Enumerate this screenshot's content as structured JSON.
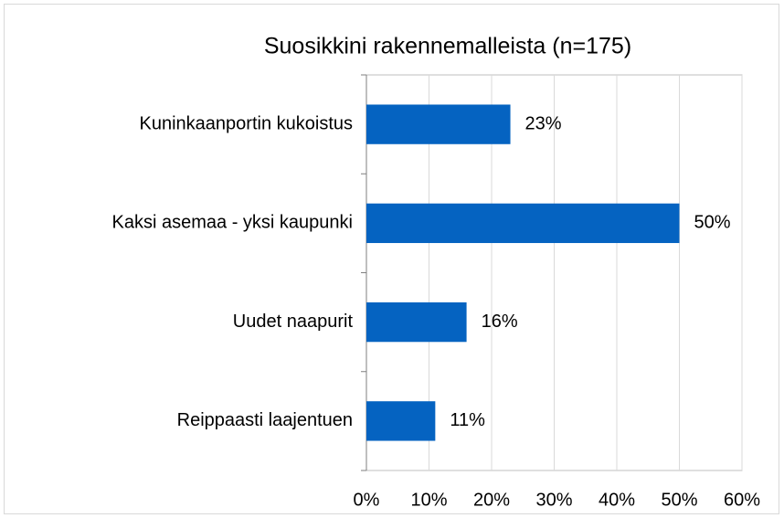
{
  "chart_data": {
    "type": "bar",
    "orientation": "horizontal",
    "title": "Suosikkini rakennemalleista (n=175)",
    "categories": [
      "Kuninkaanportin kukoistus",
      "Kaksi asemaa - yksi kaupunki",
      "Uudet naapurit",
      "Reippaasti laajentuen"
    ],
    "values": [
      23,
      50,
      16,
      11
    ],
    "value_labels": [
      "23%",
      "50%",
      "16%",
      "11%"
    ],
    "color": "#0563c1",
    "xlim": [
      0,
      60
    ],
    "xticks": [
      {
        "value": 0,
        "label": "0%"
      },
      {
        "value": 10,
        "label": "10%"
      },
      {
        "value": 20,
        "label": "20%"
      },
      {
        "value": 30,
        "label": "30%"
      },
      {
        "value": 40,
        "label": "40%"
      },
      {
        "value": 50,
        "label": "50%"
      },
      {
        "value": 60,
        "label": "60%"
      }
    ],
    "grid": true
  }
}
